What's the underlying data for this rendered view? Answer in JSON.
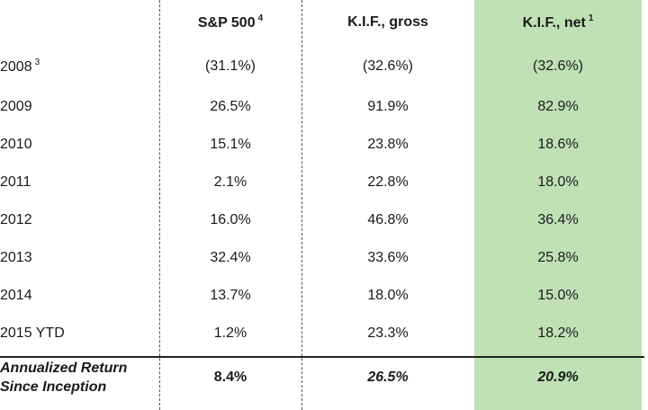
{
  "table": {
    "headers": [
      {
        "label": "",
        "sup": ""
      },
      {
        "label": "S&P 500",
        "sup": "4"
      },
      {
        "label": "K.I.F., gross",
        "sup": ""
      },
      {
        "label": "K.I.F., net",
        "sup": "1"
      }
    ],
    "rows": [
      {
        "label": "2008",
        "sup": "3",
        "values": [
          "(31.1%)",
          "(32.6%)",
          "(32.6%)"
        ]
      },
      {
        "label": "2009",
        "sup": "",
        "values": [
          "26.5%",
          "91.9%",
          "82.9%"
        ]
      },
      {
        "label": "2010",
        "sup": "",
        "values": [
          "15.1%",
          "23.8%",
          "18.6%"
        ]
      },
      {
        "label": "2011",
        "sup": "",
        "values": [
          "2.1%",
          "22.8%",
          "18.0%"
        ]
      },
      {
        "label": "2012",
        "sup": "",
        "values": [
          "16.0%",
          "46.8%",
          "36.4%"
        ]
      },
      {
        "label": "2013",
        "sup": "",
        "values": [
          "32.4%",
          "33.6%",
          "25.8%"
        ]
      },
      {
        "label": "2014",
        "sup": "",
        "values": [
          "13.7%",
          "18.0%",
          "15.0%"
        ]
      },
      {
        "label": "2015 YTD",
        "sup": "",
        "values": [
          "1.2%",
          "23.3%",
          "18.2%"
        ]
      }
    ],
    "summary": {
      "label_line1": "Annualized Return",
      "label_line2": "Since Inception",
      "values": [
        "8.4%",
        "26.5%",
        "20.9%"
      ]
    },
    "highlight_color": "#bfe1b5"
  }
}
